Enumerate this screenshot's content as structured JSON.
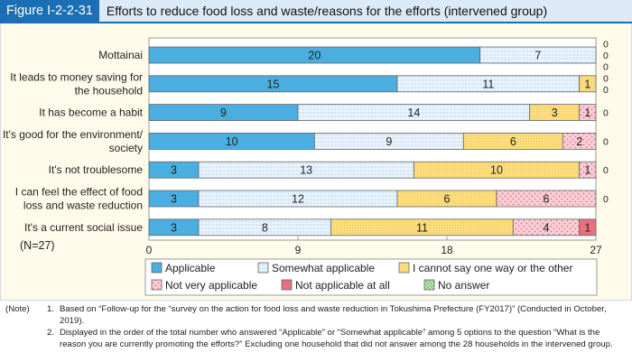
{
  "header": {
    "figure_label": "Figure I-2-2-31",
    "title": "Efforts to reduce food loss and waste/reasons for the efforts (intervened group)"
  },
  "chart_data": {
    "type": "bar",
    "orientation": "horizontal",
    "stacked": true,
    "categories": [
      "Mottainai",
      "It leads to money saving for the household",
      "It has become a habit",
      "It's good for the environment/ society",
      "It's not troublesome",
      "I can feel the effect of food loss and waste reduction",
      "It's a current social issue"
    ],
    "category_lines": [
      [
        "Mottainai"
      ],
      [
        "It leads to money saving for",
        "the household"
      ],
      [
        "It has become a habit"
      ],
      [
        "It's good for the environment/",
        "society"
      ],
      [
        "It's not troublesome"
      ],
      [
        "I can feel the effect of food",
        "loss and waste reduction"
      ],
      [
        "It's a current social issue"
      ]
    ],
    "series": [
      {
        "name": "Applicable",
        "color": "#4aaee0",
        "values": [
          20,
          15,
          9,
          10,
          3,
          3,
          3
        ]
      },
      {
        "name": "Somewhat applicable",
        "color": "#d7e9f8",
        "values": [
          7,
          11,
          14,
          9,
          13,
          12,
          8
        ]
      },
      {
        "name": "I cannot say one way or the other",
        "color": "#fbe08a",
        "values": [
          0,
          1,
          3,
          6,
          10,
          6,
          11
        ]
      },
      {
        "name": "Not very applicable",
        "color": "#f9cfd8",
        "values": [
          0,
          0,
          1,
          2,
          1,
          6,
          4
        ]
      },
      {
        "name": "Not applicable at all",
        "color": "#e8707e",
        "values": [
          0,
          0,
          0,
          0,
          0,
          0,
          1
        ]
      },
      {
        "name": "No answer",
        "color": "#c9e7c0",
        "values": [
          0,
          0,
          0,
          0,
          0,
          0,
          0
        ]
      }
    ],
    "zero_labels": [
      [
        "0",
        "0",
        "0"
      ],
      [
        "0",
        "0"
      ],
      [
        "0"
      ],
      [
        "0"
      ],
      [
        "0"
      ],
      [
        "0"
      ],
      []
    ],
    "xlim": [
      0,
      27
    ],
    "xticks": [
      "0",
      "9",
      "18",
      "27"
    ],
    "annotation": "(N=27)",
    "legend_position": "bottom"
  },
  "notes": {
    "label": "(Note)",
    "items": [
      {
        "num": "1.",
        "text": "Based on “Follow-up for the “survey on the action for food loss and waste reduction in Tokushima Prefecture (FY2017)” (Conducted in October, 2019)."
      },
      {
        "num": "2.",
        "text": "Displayed in the order of the total number who answered “Applicable” or “Somewhat applicable” among 5 options to the question “What is the reason you are currently promoting the efforts?” Excluding one household that did not answer among the 28 households in the intervened group."
      }
    ]
  }
}
